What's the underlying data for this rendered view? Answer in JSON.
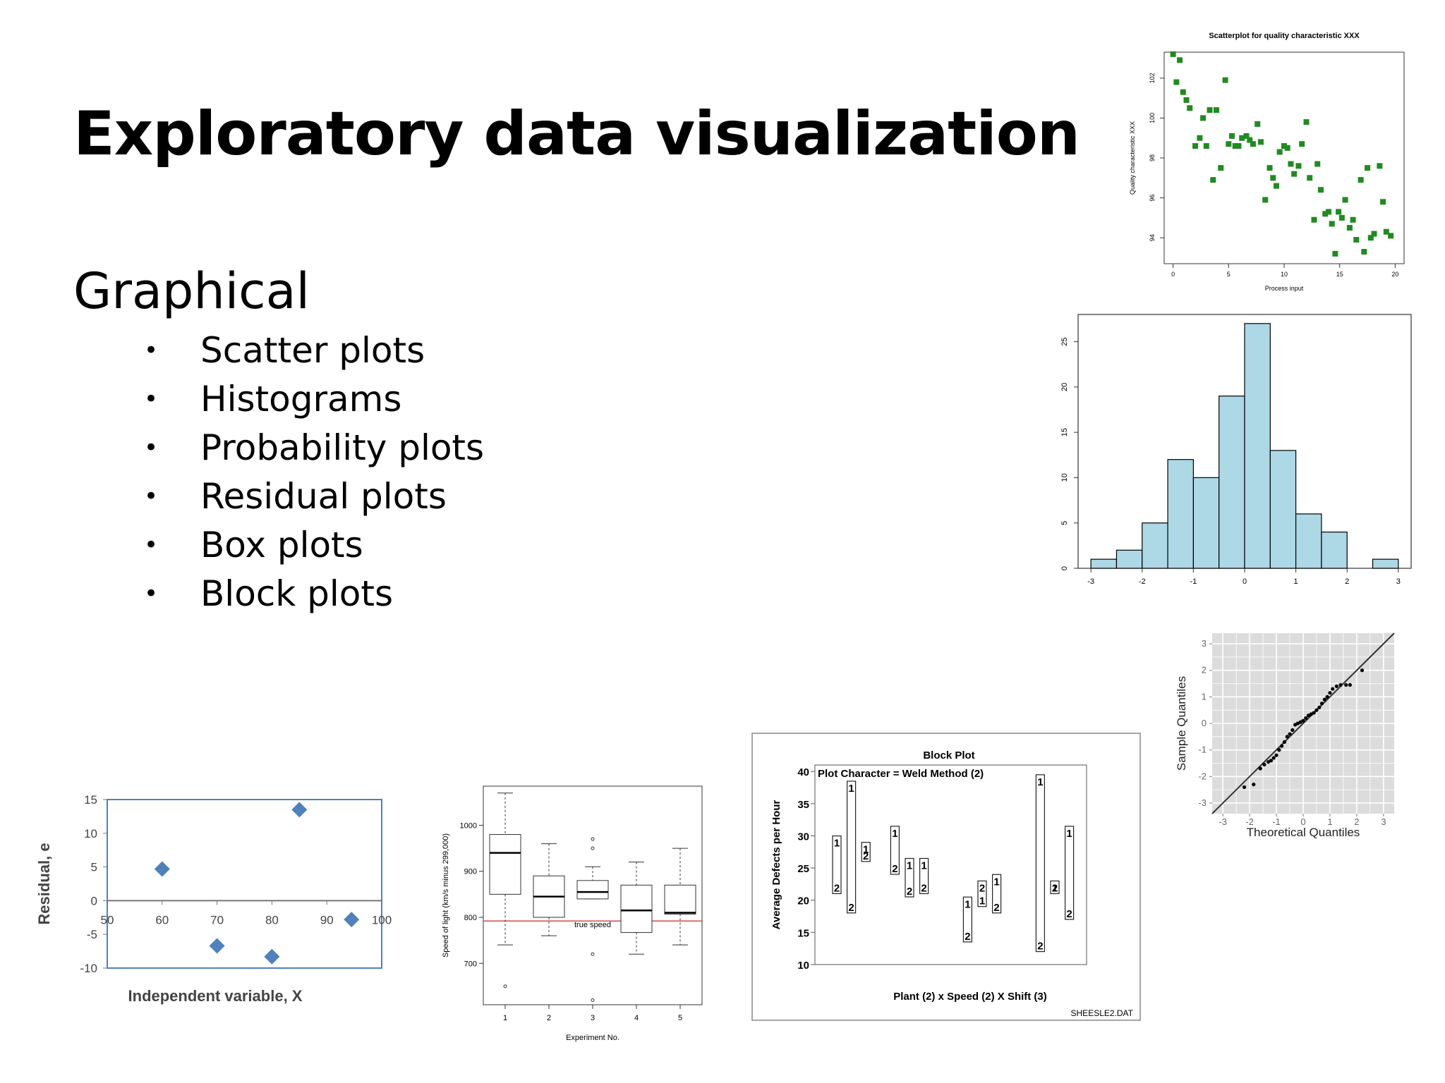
{
  "slide": {
    "title": "Exploratory data visualization",
    "subtitle": "Graphical",
    "bullets": [
      "Scatter plots",
      "Histograms",
      "Probability plots",
      "Residual plots",
      "Box plots",
      "Block plots"
    ]
  },
  "colors": {
    "scatter": "#1e8c1e",
    "histogram": "#add8e6",
    "residual": "#4f81bd",
    "true_speed": "#d94a4a",
    "qq_bg": "#dcdcdc"
  },
  "chart_data": [
    {
      "id": "scatter",
      "type": "scatter",
      "title": "Scatterplot for quality characteristic XXX",
      "xlabel": "Process input",
      "ylabel": "Quality characteristic XXX",
      "xlim": [
        -0.8,
        20.8
      ],
      "ylim": [
        92.7,
        103.3
      ],
      "xticks": [
        0,
        5,
        10,
        15,
        20
      ],
      "yticks": [
        94,
        96,
        98,
        100,
        102
      ],
      "points": [
        [
          0,
          103.2
        ],
        [
          0.3,
          101.8
        ],
        [
          0.6,
          102.9
        ],
        [
          0.9,
          101.3
        ],
        [
          1.2,
          100.9
        ],
        [
          1.5,
          100.5
        ],
        [
          2,
          98.6
        ],
        [
          2.4,
          99
        ],
        [
          2.7,
          100
        ],
        [
          3,
          98.6
        ],
        [
          3.3,
          100.4
        ],
        [
          3.6,
          96.9
        ],
        [
          3.9,
          100.4
        ],
        [
          4.3,
          97.5
        ],
        [
          4.7,
          101.9
        ],
        [
          5,
          98.7
        ],
        [
          5.3,
          99.1
        ],
        [
          5.6,
          98.6
        ],
        [
          5.9,
          98.6
        ],
        [
          6.2,
          99
        ],
        [
          6.6,
          99.1
        ],
        [
          6.9,
          98.9
        ],
        [
          7.2,
          98.7
        ],
        [
          7.6,
          99.7
        ],
        [
          7.9,
          98.8
        ],
        [
          8.3,
          95.9
        ],
        [
          8.7,
          97.5
        ],
        [
          9,
          97
        ],
        [
          9.3,
          96.6
        ],
        [
          9.6,
          98.3
        ],
        [
          10,
          98.6
        ],
        [
          10.3,
          98.5
        ],
        [
          10.6,
          97.7
        ],
        [
          10.9,
          97.2
        ],
        [
          11.3,
          97.6
        ],
        [
          11.6,
          98.7
        ],
        [
          12,
          99.8
        ],
        [
          12.3,
          97
        ],
        [
          12.7,
          94.9
        ],
        [
          13,
          97.7
        ],
        [
          13.3,
          96.4
        ],
        [
          13.7,
          95.2
        ],
        [
          14,
          95.3
        ],
        [
          14.3,
          94.7
        ],
        [
          14.6,
          93.2
        ],
        [
          14.9,
          95.3
        ],
        [
          15.2,
          95
        ],
        [
          15.5,
          95.9
        ],
        [
          15.9,
          94.5
        ],
        [
          16.2,
          94.9
        ],
        [
          16.5,
          93.9
        ],
        [
          16.9,
          96.9
        ],
        [
          17.2,
          93.3
        ],
        [
          17.5,
          97.5
        ],
        [
          17.8,
          94
        ],
        [
          18.1,
          94.2
        ],
        [
          18.6,
          97.6
        ],
        [
          18.9,
          95.8
        ],
        [
          19.2,
          94.3
        ],
        [
          19.6,
          94.1
        ]
      ]
    },
    {
      "id": "histogram",
      "type": "bar",
      "xlim": [
        -3.25,
        3.25
      ],
      "ylim": [
        0,
        28
      ],
      "xticks": [
        -3,
        -2,
        -1,
        0,
        1,
        2,
        3
      ],
      "yticks": [
        0,
        5,
        10,
        15,
        20,
        25
      ],
      "bins": [
        [
          -3,
          -2.5,
          1
        ],
        [
          -2.5,
          -2,
          2
        ],
        [
          -2,
          -1.5,
          5
        ],
        [
          -1.5,
          -1,
          12
        ],
        [
          -1,
          -0.5,
          10
        ],
        [
          -0.5,
          0,
          19
        ],
        [
          0,
          0.5,
          27
        ],
        [
          0.5,
          1,
          13
        ],
        [
          1,
          1.5,
          6
        ],
        [
          1.5,
          2,
          4
        ],
        [
          2,
          2.5,
          0
        ],
        [
          2.5,
          3,
          1
        ]
      ]
    },
    {
      "id": "qq",
      "type": "scatter",
      "xlabel": "Theoretical Quantiles",
      "ylabel": "Sample Quantiles",
      "xlim": [
        -3.4,
        3.4
      ],
      "ylim": [
        -3.4,
        3.4
      ],
      "xticks": [
        -3,
        -2,
        -1,
        0,
        1,
        2,
        3
      ],
      "yticks": [
        -3,
        -2,
        -1,
        0,
        1,
        2,
        3
      ],
      "points": [
        [
          -2.2,
          -2.4
        ],
        [
          -1.85,
          -2.3
        ],
        [
          -1.6,
          -1.7
        ],
        [
          -1.45,
          -1.55
        ],
        [
          -1.3,
          -1.45
        ],
        [
          -1.2,
          -1.4
        ],
        [
          -1.1,
          -1.3
        ],
        [
          -1,
          -1.2
        ],
        [
          -0.9,
          -1
        ],
        [
          -0.8,
          -0.85
        ],
        [
          -0.7,
          -0.7
        ],
        [
          -0.6,
          -0.5
        ],
        [
          -0.5,
          -0.4
        ],
        [
          -0.4,
          -0.25
        ],
        [
          -0.3,
          -0.05
        ],
        [
          -0.2,
          0
        ],
        [
          -0.1,
          0.05
        ],
        [
          0,
          0.1
        ],
        [
          0.1,
          0.2
        ],
        [
          0.2,
          0.3
        ],
        [
          0.3,
          0.35
        ],
        [
          0.4,
          0.4
        ],
        [
          0.5,
          0.5
        ],
        [
          0.6,
          0.6
        ],
        [
          0.7,
          0.75
        ],
        [
          0.8,
          0.9
        ],
        [
          0.9,
          1
        ],
        [
          1,
          1.15
        ],
        [
          1.1,
          1.3
        ],
        [
          1.25,
          1.4
        ],
        [
          1.4,
          1.45
        ],
        [
          1.6,
          1.45
        ],
        [
          1.75,
          1.45
        ],
        [
          2.2,
          2
        ]
      ],
      "reference_line": [
        [
          -3.4,
          -3.4
        ],
        [
          3.4,
          3.4
        ]
      ]
    },
    {
      "id": "residual",
      "type": "scatter",
      "xlabel": "Independent variable, X",
      "ylabel": "Residual, e",
      "xlim": [
        50,
        100
      ],
      "ylim": [
        -10,
        15
      ],
      "xticks": [
        50,
        60,
        70,
        80,
        90,
        100
      ],
      "yticks": [
        -10,
        -5,
        0,
        5,
        10,
        15
      ],
      "points": [
        [
          60,
          4.7
        ],
        [
          70,
          -6.7
        ],
        [
          80,
          -8.3
        ],
        [
          85,
          13.5
        ],
        [
          94.5,
          -2.8
        ]
      ]
    },
    {
      "id": "boxplot",
      "type": "box",
      "xlabel": "Experiment No.",
      "ylabel": "Speed of light (km/s minus 299,000)",
      "xlim": [
        0.5,
        5.5
      ],
      "ylim": [
        610,
        1085
      ],
      "xticks": [
        1,
        2,
        3,
        4,
        5
      ],
      "yticks": [
        700,
        800,
        900,
        1000
      ],
      "reference": {
        "value": 792,
        "label": "true speed"
      },
      "boxes": [
        {
          "x": 1,
          "lo": 740,
          "q1": 850,
          "med": 940,
          "q3": 980,
          "hi": 1070,
          "outliers": [
            650
          ]
        },
        {
          "x": 2,
          "lo": 760,
          "q1": 800,
          "med": 845,
          "q3": 890,
          "hi": 960,
          "outliers": []
        },
        {
          "x": 3,
          "lo": 840,
          "q1": 840,
          "med": 855,
          "q3": 880,
          "hi": 910,
          "outliers": [
            970,
            950,
            720,
            620
          ]
        },
        {
          "x": 4,
          "lo": 720,
          "q1": 767,
          "med": 815,
          "q3": 870,
          "hi": 920,
          "outliers": []
        },
        {
          "x": 5,
          "lo": 740,
          "q1": 807,
          "med": 810,
          "q3": 870,
          "hi": 950,
          "outliers": []
        }
      ]
    },
    {
      "id": "block",
      "type": "block",
      "title": "Block Plot",
      "subtitle": "Plot Character = Weld Method (2)",
      "xlabel": "Plant (2) x Speed (2) X Shift (3)",
      "ylabel": "Average Defects per Hour",
      "footer": "SHEESLE2.DAT",
      "ylim": [
        10,
        41
      ],
      "yticks": [
        10,
        15,
        20,
        25,
        30,
        35,
        40
      ],
      "blocks": [
        {
          "x": 1,
          "v1": 29,
          "v2": 22
        },
        {
          "x": 2,
          "v1": 37.5,
          "v2": 19
        },
        {
          "x": 3,
          "v1": 28,
          "v2": 27
        },
        {
          "x": 5,
          "v1": 30.5,
          "v2": 25
        },
        {
          "x": 6,
          "v1": 25.5,
          "v2": 21.5
        },
        {
          "x": 7,
          "v1": 25.5,
          "v2": 22
        },
        {
          "x": 10,
          "v1": 19.5,
          "v2": 14.5
        },
        {
          "x": 11,
          "v1": 20,
          "v2": 22
        },
        {
          "x": 12,
          "v1": 23,
          "v2": 19
        },
        {
          "x": 15,
          "v1": 38.5,
          "v2": 13
        },
        {
          "x": 16,
          "v1": 22,
          "v2": 22
        },
        {
          "x": 17,
          "v1": 30.5,
          "v2": 18
        }
      ]
    }
  ]
}
